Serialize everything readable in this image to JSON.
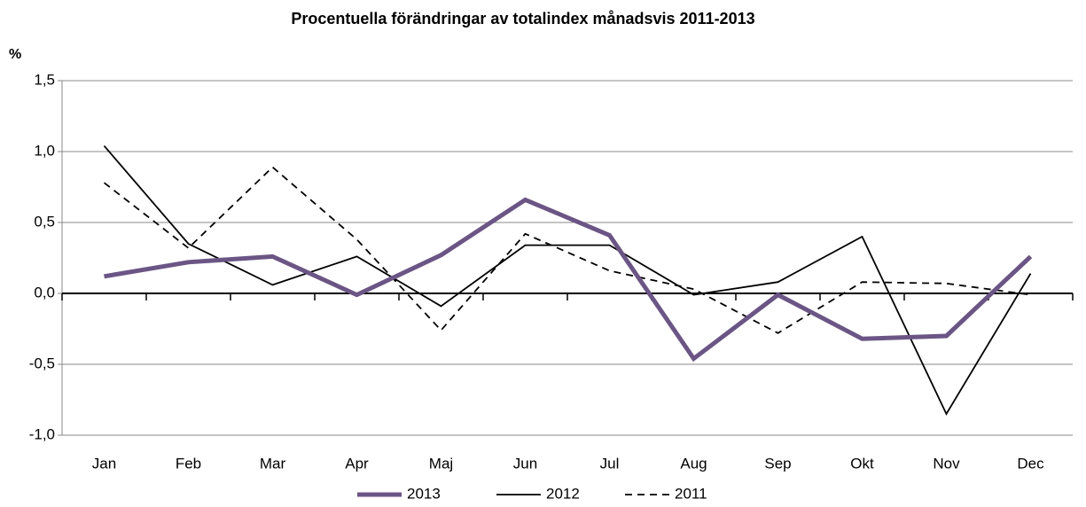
{
  "chart_data": {
    "type": "line",
    "title": "Procentuella förändringar av totalindex månadsvis 2011-2013",
    "y_label": "%",
    "categories": [
      "Jan",
      "Feb",
      "Mar",
      "Apr",
      "Maj",
      "Jun",
      "Jul",
      "Aug",
      "Sep",
      "Okt",
      "Nov",
      "Dec"
    ],
    "series": [
      {
        "name": "2013",
        "color": "#6b5585",
        "width": 5,
        "dash": false,
        "values": [
          0.12,
          0.22,
          0.26,
          -0.01,
          0.27,
          0.66,
          0.41,
          -0.46,
          -0.01,
          -0.32,
          -0.3,
          0.26
        ]
      },
      {
        "name": "2012",
        "color": "#000000",
        "width": 1.8,
        "dash": false,
        "values": [
          1.04,
          0.35,
          0.06,
          0.26,
          -0.09,
          0.34,
          0.34,
          -0.01,
          0.08,
          0.4,
          -0.85,
          0.14
        ]
      },
      {
        "name": "2011",
        "color": "#000000",
        "width": 1.8,
        "dash": true,
        "values": [
          0.78,
          0.32,
          0.89,
          0.38,
          -0.26,
          0.42,
          0.16,
          0.03,
          -0.28,
          0.08,
          0.07,
          -0.01
        ]
      }
    ],
    "ylim": [
      -1.0,
      1.5
    ],
    "yticks": [
      {
        "value": -1.0,
        "label": "-1,0"
      },
      {
        "value": -0.5,
        "label": "-0,5"
      },
      {
        "value": 0.0,
        "label": "0,0"
      },
      {
        "value": 0.5,
        "label": "0,5"
      },
      {
        "value": 1.0,
        "label": "1,0"
      },
      {
        "value": 1.5,
        "label": "1,5"
      }
    ],
    "grid": true,
    "legend": "bottom"
  }
}
